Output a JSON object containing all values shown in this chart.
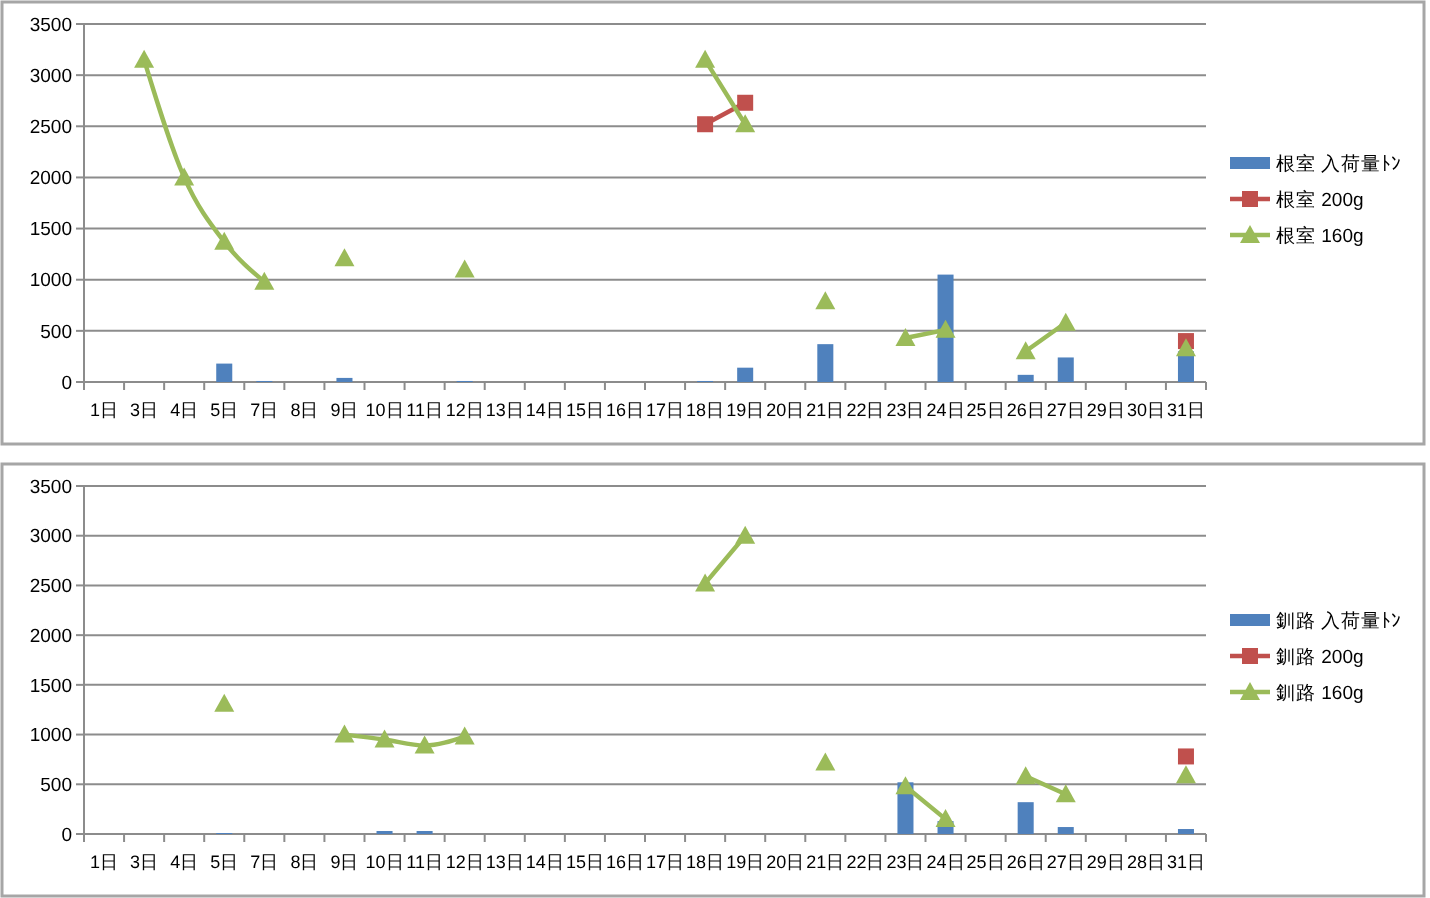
{
  "chart_data": [
    {
      "type": "bar",
      "categories": [
        "1日",
        "3日",
        "4日",
        "5日",
        "7日",
        "8日",
        "9日",
        "10日",
        "11日",
        "12日",
        "13日",
        "14日",
        "15日",
        "16日",
        "17日",
        "18日",
        "19日",
        "20日",
        "21日",
        "22日",
        "23日",
        "24日",
        "25日",
        "26日",
        "27日",
        "29日",
        "30日",
        "31日"
      ],
      "series": [
        {
          "name": "根室 入荷量ﾄﾝ",
          "color": "#4f81bd",
          "values": [
            null,
            null,
            null,
            180,
            10,
            null,
            40,
            null,
            null,
            10,
            null,
            null,
            null,
            null,
            null,
            10,
            140,
            null,
            370,
            null,
            null,
            1050,
            null,
            70,
            240,
            null,
            null,
            300
          ]
        },
        {
          "name": "根室 200g",
          "type": "line",
          "marker": "square",
          "color": "#c0504d",
          "values": [
            null,
            null,
            null,
            null,
            null,
            null,
            null,
            null,
            null,
            null,
            null,
            null,
            null,
            null,
            null,
            2520,
            2730,
            null,
            null,
            null,
            null,
            null,
            null,
            null,
            null,
            null,
            null,
            400
          ]
        },
        {
          "name": "根室 160g",
          "type": "line",
          "marker": "triangle",
          "color": "#9bbb59",
          "values": [
            null,
            3150,
            2000,
            1370,
            980,
            null,
            1210,
            null,
            null,
            1100,
            null,
            null,
            null,
            null,
            null,
            3150,
            2520,
            null,
            790,
            null,
            430,
            510,
            null,
            300,
            580,
            null,
            null,
            330
          ]
        }
      ],
      "ylim": [
        0,
        3500
      ],
      "yticks": [
        0,
        500,
        1000,
        1500,
        2000,
        2500,
        3000,
        3500
      ],
      "grid": "y",
      "legend": "right"
    },
    {
      "type": "bar",
      "categories": [
        "1日",
        "3日",
        "4日",
        "5日",
        "7日",
        "8日",
        "9日",
        "10日",
        "11日",
        "12日",
        "13日",
        "14日",
        "15日",
        "16日",
        "17日",
        "18日",
        "19日",
        "20日",
        "21日",
        "22日",
        "23日",
        "24日",
        "25日",
        "26日",
        "27日",
        "29日",
        "28日",
        "31日"
      ],
      "series": [
        {
          "name": "釧路 入荷量ﾄﾝ",
          "color": "#4f81bd",
          "values": [
            null,
            null,
            null,
            10,
            null,
            null,
            null,
            30,
            30,
            null,
            null,
            null,
            null,
            null,
            null,
            null,
            null,
            null,
            null,
            null,
            520,
            130,
            null,
            320,
            70,
            null,
            null,
            50
          ]
        },
        {
          "name": "釧路 200g",
          "type": "line",
          "marker": "square",
          "color": "#c0504d",
          "values": [
            null,
            null,
            null,
            null,
            null,
            null,
            null,
            null,
            null,
            null,
            null,
            null,
            null,
            null,
            null,
            null,
            null,
            null,
            null,
            null,
            null,
            null,
            null,
            null,
            null,
            null,
            null,
            780
          ]
        },
        {
          "name": "釧路 160g",
          "type": "line",
          "marker": "triangle",
          "color": "#9bbb59",
          "values": [
            null,
            null,
            null,
            1310,
            null,
            null,
            1000,
            950,
            890,
            980,
            null,
            null,
            null,
            null,
            null,
            2520,
            3000,
            null,
            720,
            null,
            480,
            150,
            null,
            580,
            400,
            null,
            null,
            590
          ]
        }
      ],
      "ylim": [
        0,
        3500
      ],
      "yticks": [
        0,
        500,
        1000,
        1500,
        2000,
        2500,
        3000,
        3500
      ],
      "grid": "y",
      "legend": "right"
    }
  ]
}
